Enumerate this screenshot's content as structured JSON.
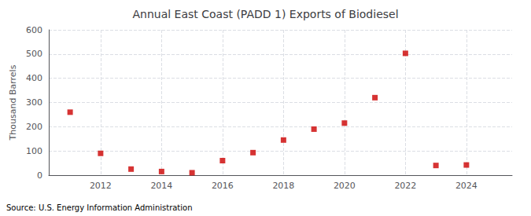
{
  "chart_data": {
    "type": "scatter",
    "title": "Annual East Coast (PADD 1) Exports of Biodiesel",
    "ylabel": "Thousand Barrels",
    "source": "Source: U.S. Energy Information Administration",
    "x": [
      2011,
      2012,
      2013,
      2014,
      2015,
      2016,
      2017,
      2018,
      2019,
      2020,
      2021,
      2022,
      2023,
      2024
    ],
    "values": [
      260,
      90,
      25,
      15,
      10,
      60,
      93,
      145,
      190,
      215,
      320,
      503,
      40,
      42
    ],
    "color": "#cc0000",
    "marker": "square",
    "xlim": [
      2010.3,
      2025.5
    ],
    "xticks": [
      2012,
      2014,
      2016,
      2018,
      2020,
      2022,
      2024
    ],
    "ylim": [
      0,
      600
    ],
    "yticks": [
      0,
      100,
      200,
      300,
      400,
      500,
      600
    ],
    "grid": true
  }
}
